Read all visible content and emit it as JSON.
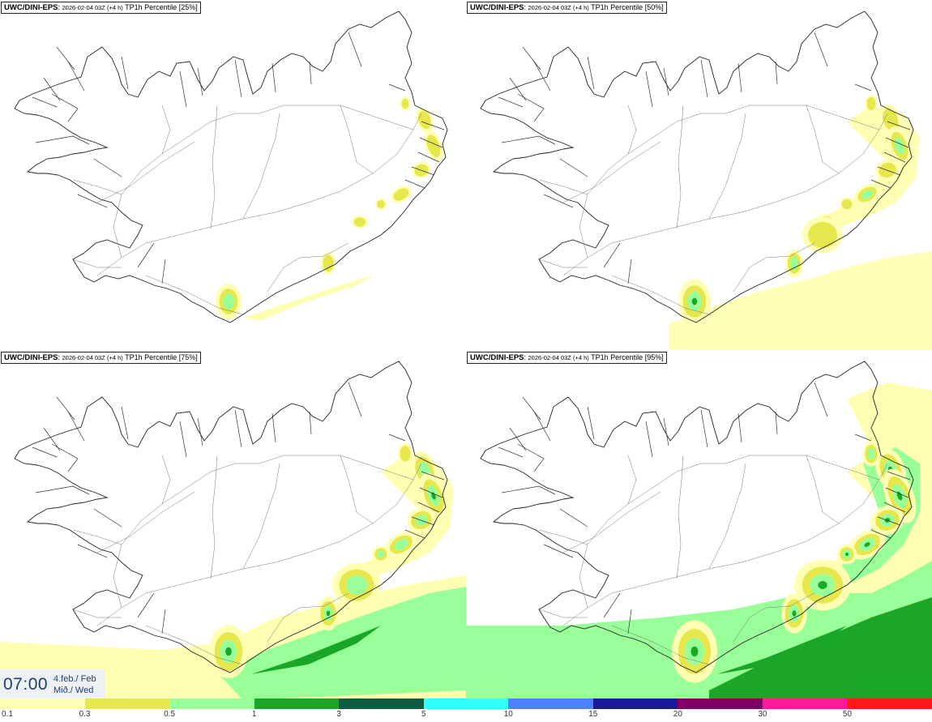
{
  "panels": [
    {
      "model": "UWC/DINI-EPS",
      "run": "2026-02-04 03Z (+4 h)",
      "field": "TP1h Percentile",
      "percentile": "[25%]",
      "intensity": 0
    },
    {
      "model": "UWC/DINI-EPS",
      "run": "2026-02-04 03Z (+4 h)",
      "field": "TP1h Percentile",
      "percentile": "[50%]",
      "intensity": 1
    },
    {
      "model": "UWC/DINI-EPS",
      "run": "2026-02-04 03Z (+4 h)",
      "field": "TP1h Percentile",
      "percentile": "[75%]",
      "intensity": 2
    },
    {
      "model": "UWC/DINI-EPS",
      "run": "2026-02-04 03Z (+4 h)",
      "field": "TP1h Percentile",
      "percentile": "[95%]",
      "intensity": 3
    }
  ],
  "time": {
    "clock": "07:00",
    "date_line1": "4.feb./ Feb",
    "date_line2": "Mið./ Wed"
  },
  "legend": {
    "colors": [
      "#ffffb3",
      "#e6e64d",
      "#99ff99",
      "#1aa626",
      "#0f5c45",
      "#33ffff",
      "#4d7fff",
      "#1a1a99",
      "#800066",
      "#ff1a99",
      "#ff1a1a"
    ],
    "ticks": [
      "0.1",
      "0.3",
      "0.5",
      "1",
      "3",
      "5",
      "10",
      "15",
      "20",
      "30",
      "50"
    ]
  }
}
